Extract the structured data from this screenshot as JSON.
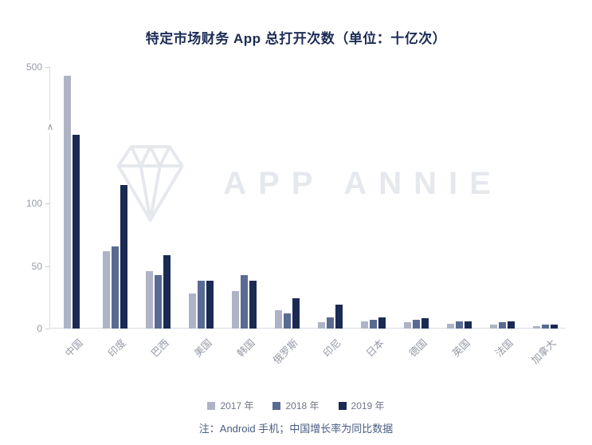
{
  "title": "特定市场财务 App 总打开次数（单位：十亿次）",
  "watermark": "APP ANNIE",
  "note": "注：Android 手机；中国增长率为同比数据",
  "chart_data": {
    "type": "bar",
    "title": "特定市场财务 App 总打开次数（单位：十亿次）",
    "unit": "十亿次",
    "categories": [
      "中国",
      "印度",
      "巴西",
      "美国",
      "韩国",
      "俄罗斯",
      "印尼",
      "日本",
      "德国",
      "英国",
      "法国",
      "加拿大"
    ],
    "series": [
      {
        "name": "2017 年",
        "color": "#aeb4c5",
        "values": [
          455,
          62,
          46,
          28,
          30,
          15,
          5,
          6,
          5,
          4,
          3,
          2
        ]
      },
      {
        "name": "2018 年",
        "color": "#5a6b93",
        "values": [
          null,
          66,
          43,
          38,
          43,
          12,
          9,
          7,
          7,
          6,
          5,
          3
        ]
      },
      {
        "name": "2019 年",
        "color": "#1a2a52",
        "values": [
          158,
          115,
          59,
          38,
          38,
          24,
          19,
          9,
          8,
          6,
          6,
          3
        ]
      }
    ],
    "y_ticks": [
      0,
      50,
      100,
      500
    ],
    "y_max": 500,
    "axis_break": {
      "value": 155,
      "label": "∧"
    },
    "grid": false,
    "legend_position": "bottom",
    "note": "注：Android 手机；中国增长率为同比数据"
  }
}
